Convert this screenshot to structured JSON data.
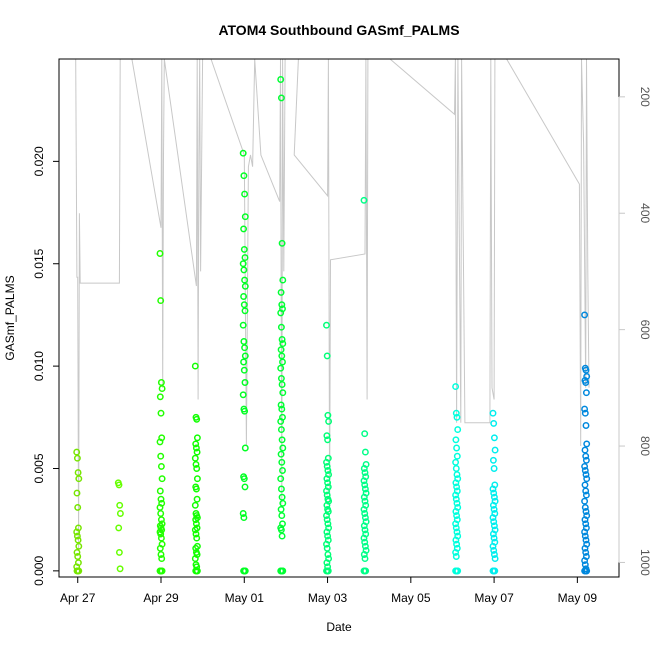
{
  "chart_data": {
    "type": "scatter",
    "title": "ATOM4 Southbound GASmf_PALMS",
    "xlabel": "Date",
    "ylabel": "GASmf_PALMS",
    "x_tick_labels": [
      "Apr 27",
      "Apr 29",
      "May 01",
      "May 03",
      "May 05",
      "May 07",
      "May 09"
    ],
    "x_ticks_day": [
      0,
      2,
      4,
      6,
      8,
      10,
      12
    ],
    "xlim_day": [
      -0.45,
      13.0
    ],
    "ylim": [
      -0.0003,
      0.025
    ],
    "y_ticks": [
      0.0,
      0.005,
      0.01,
      0.015,
      0.02
    ],
    "y_tick_labels": [
      "0.000",
      "0.005",
      "0.010",
      "0.015",
      "0.020"
    ],
    "right_axis": {
      "label": "",
      "ticks": [
        200,
        400,
        600,
        800,
        1000
      ],
      "tick_labels": [
        "200",
        "400",
        "600",
        "800",
        "1000"
      ],
      "lim": [
        1025,
        135
      ],
      "color": "#c8c8c8"
    },
    "point_color_scale": "rainbow by time (green to blue)",
    "pressure_line_color": "#c8c8c8",
    "flights": [
      {
        "day": 0.0,
        "color": "#77e600",
        "values": [
          0.0058,
          0.0055,
          0.0048,
          0.0045,
          0.0038,
          0.0031,
          0.0021,
          0.0019,
          0.0017,
          0.0015,
          0.0012,
          0.0009,
          0.0007,
          0.0004,
          0.0002,
          0.0,
          0.0,
          0.0,
          0.0
        ]
      },
      {
        "day": 1.0,
        "color": "#66ff00",
        "values": [
          0.0043,
          0.0042,
          0.0032,
          0.0028,
          0.0021,
          0.0009,
          0.0001
        ]
      },
      {
        "day": 2.0,
        "color": "#22ff00",
        "values": [
          0.0155,
          0.0132,
          0.0092,
          0.0089,
          0.0085,
          0.0077,
          0.0065,
          0.0063,
          0.0056,
          0.0051,
          0.0045,
          0.0039,
          0.0035,
          0.0033,
          0.0031,
          0.0028,
          0.0025,
          0.0023,
          0.0022,
          0.0021,
          0.002,
          0.0019,
          0.0018,
          0.0016,
          0.0013,
          0.0011,
          0.0008,
          0.0006,
          0.0,
          0.0,
          0.0,
          0.0,
          0.0,
          0.0
        ]
      },
      {
        "day": 2.85,
        "color": "#11ff00",
        "values": [
          0.01,
          0.0075,
          0.0074,
          0.0065,
          0.0062,
          0.006,
          0.0058,
          0.0055,
          0.0052,
          0.005,
          0.0045,
          0.0041,
          0.004,
          0.0035,
          0.0032,
          0.0028,
          0.0027,
          0.0026,
          0.0025,
          0.0023,
          0.0021,
          0.002,
          0.0018,
          0.0016,
          0.0012,
          0.0011,
          0.0009,
          0.0008,
          0.0006,
          0.0003,
          0.0002,
          0.0,
          0.0,
          0.0,
          0.0
        ]
      },
      {
        "day": 4.0,
        "color": "#00ff22",
        "values": [
          0.0204,
          0.0193,
          0.0184,
          0.0173,
          0.0167,
          0.0157,
          0.0153,
          0.015,
          0.0147,
          0.0142,
          0.0139,
          0.0134,
          0.013,
          0.0127,
          0.012,
          0.0112,
          0.0109,
          0.0105,
          0.0102,
          0.0098,
          0.0092,
          0.0086,
          0.0079,
          0.0078,
          0.006,
          0.0046,
          0.0045,
          0.0041,
          0.0028,
          0.0026,
          0.0,
          0.0,
          0.0,
          0.0,
          0.0
        ]
      },
      {
        "day": 4.9,
        "color": "#00ff33",
        "values": [
          0.024,
          0.0231,
          0.016,
          0.0142,
          0.0136,
          0.013,
          0.0128,
          0.0126,
          0.0119,
          0.0113,
          0.0111,
          0.0108,
          0.0105,
          0.0102,
          0.0099,
          0.0094,
          0.0091,
          0.0087,
          0.0081,
          0.0079,
          0.0075,
          0.0073,
          0.0069,
          0.0064,
          0.006,
          0.0057,
          0.0053,
          0.0049,
          0.0045,
          0.004,
          0.0036,
          0.0033,
          0.003,
          0.0027,
          0.0023,
          0.0021,
          0.002,
          0.0017,
          0.0,
          0.0,
          0.0,
          0.0,
          0.0
        ]
      },
      {
        "day": 6.0,
        "color": "#00ff77",
        "values": [
          0.012,
          0.0105,
          0.0076,
          0.0073,
          0.0066,
          0.0064,
          0.0055,
          0.0053,
          0.0051,
          0.0049,
          0.0047,
          0.0045,
          0.0043,
          0.0041,
          0.0039,
          0.0037,
          0.0035,
          0.0034,
          0.0032,
          0.003,
          0.0029,
          0.0027,
          0.0025,
          0.0023,
          0.0021,
          0.0019,
          0.0017,
          0.0015,
          0.0013,
          0.0011,
          0.0008,
          0.0006,
          0.0004,
          0.0002,
          0.0,
          0.0,
          0.0,
          0.0
        ]
      },
      {
        "day": 6.9,
        "color": "#00ff88",
        "values": [
          0.0181,
          0.0067,
          0.0058,
          0.0052,
          0.005,
          0.0048,
          0.0046,
          0.0044,
          0.0042,
          0.004,
          0.0038,
          0.0036,
          0.0034,
          0.0032,
          0.003,
          0.0028,
          0.0026,
          0.0024,
          0.0022,
          0.002,
          0.0018,
          0.0016,
          0.0014,
          0.0012,
          0.001,
          0.0008,
          0.0006,
          0.0,
          0.0,
          0.0
        ]
      },
      {
        "day": 9.1,
        "color": "#00ffdd",
        "values": [
          0.009,
          0.0077,
          0.0075,
          0.0069,
          0.0064,
          0.006,
          0.0056,
          0.0053,
          0.005,
          0.0047,
          0.0045,
          0.0043,
          0.0041,
          0.0039,
          0.0037,
          0.0035,
          0.0033,
          0.0031,
          0.0029,
          0.0027,
          0.0025,
          0.0023,
          0.0021,
          0.0019,
          0.0017,
          0.0015,
          0.0013,
          0.0011,
          0.0009,
          0.0007,
          0.0,
          0.0,
          0.0,
          0.0,
          0.0,
          0.0
        ]
      },
      {
        "day": 10.0,
        "color": "#00eeee",
        "values": [
          0.0077,
          0.0072,
          0.0065,
          0.0059,
          0.0054,
          0.005,
          0.0042,
          0.004,
          0.0038,
          0.0036,
          0.0034,
          0.0032,
          0.003,
          0.0028,
          0.0026,
          0.0024,
          0.0022,
          0.002,
          0.0018,
          0.0016,
          0.0014,
          0.0012,
          0.001,
          0.0008,
          0.0006,
          0.0,
          0.0,
          0.0,
          0.0
        ]
      },
      {
        "day": 12.2,
        "color": "#0088dd",
        "values": [
          0.0125,
          0.0099,
          0.0098,
          0.0095,
          0.0093,
          0.0092,
          0.0087,
          0.0079,
          0.0077,
          0.0071,
          0.0062,
          0.0059,
          0.0056,
          0.0054,
          0.0051,
          0.0049,
          0.0047,
          0.0045,
          0.0042,
          0.0039,
          0.0037,
          0.0034,
          0.0031,
          0.0029,
          0.0027,
          0.0025,
          0.0023,
          0.0021,
          0.0019,
          0.0017,
          0.0015,
          0.0013,
          0.0011,
          0.0009,
          0.0007,
          0.0005,
          0.0003,
          0.0001,
          0.0,
          0.0,
          0.0,
          0.0,
          0.0
        ]
      }
    ],
    "pressure_profile": [
      [
        -0.05,
        135
      ],
      [
        -0.02,
        510
      ],
      [
        0.0,
        510
      ],
      [
        0.02,
        980
      ],
      [
        0.04,
        400
      ],
      [
        0.06,
        520
      ],
      [
        1.0,
        520
      ],
      [
        1.02,
        135
      ],
      [
        1.3,
        135
      ],
      [
        2.0,
        425
      ],
      [
        2.02,
        135
      ],
      [
        2.04,
        700
      ],
      [
        2.06,
        300
      ],
      [
        2.08,
        135
      ],
      [
        2.85,
        525
      ],
      [
        2.87,
        135
      ],
      [
        2.89,
        720
      ],
      [
        2.91,
        300
      ],
      [
        2.93,
        135
      ],
      [
        2.95,
        500
      ],
      [
        3.0,
        135
      ],
      [
        3.2,
        135
      ],
      [
        4.0,
        300
      ],
      [
        4.05,
        800
      ],
      [
        4.1,
        320
      ],
      [
        4.15,
        300
      ],
      [
        4.2,
        320
      ],
      [
        4.25,
        135
      ],
      [
        4.4,
        300
      ],
      [
        4.85,
        380
      ],
      [
        4.87,
        135
      ],
      [
        4.9,
        900
      ],
      [
        4.92,
        135
      ],
      [
        4.95,
        500
      ],
      [
        4.98,
        135
      ],
      [
        5.3,
        135
      ],
      [
        5.2,
        300
      ],
      [
        6.0,
        370
      ],
      [
        6.02,
        135
      ],
      [
        6.05,
        900
      ],
      [
        6.07,
        480
      ],
      [
        6.9,
        470
      ],
      [
        6.92,
        135
      ],
      [
        6.95,
        720
      ],
      [
        6.97,
        135
      ],
      [
        7.5,
        135
      ],
      [
        9.05,
        230
      ],
      [
        9.07,
        135
      ],
      [
        9.1,
        760
      ],
      [
        9.13,
        135
      ],
      [
        9.2,
        760
      ],
      [
        9.22,
        135
      ],
      [
        9.3,
        760
      ],
      [
        9.9,
        760
      ],
      [
        9.92,
        135
      ],
      [
        9.95,
        700
      ],
      [
        10.0,
        720
      ],
      [
        10.02,
        135
      ],
      [
        10.3,
        135
      ],
      [
        12.05,
        350
      ],
      [
        12.08,
        800
      ],
      [
        12.1,
        135
      ],
      [
        12.15,
        280
      ],
      [
        12.2,
        700
      ],
      [
        12.22,
        135
      ],
      [
        12.25,
        500
      ],
      [
        12.28,
        700
      ]
    ]
  }
}
